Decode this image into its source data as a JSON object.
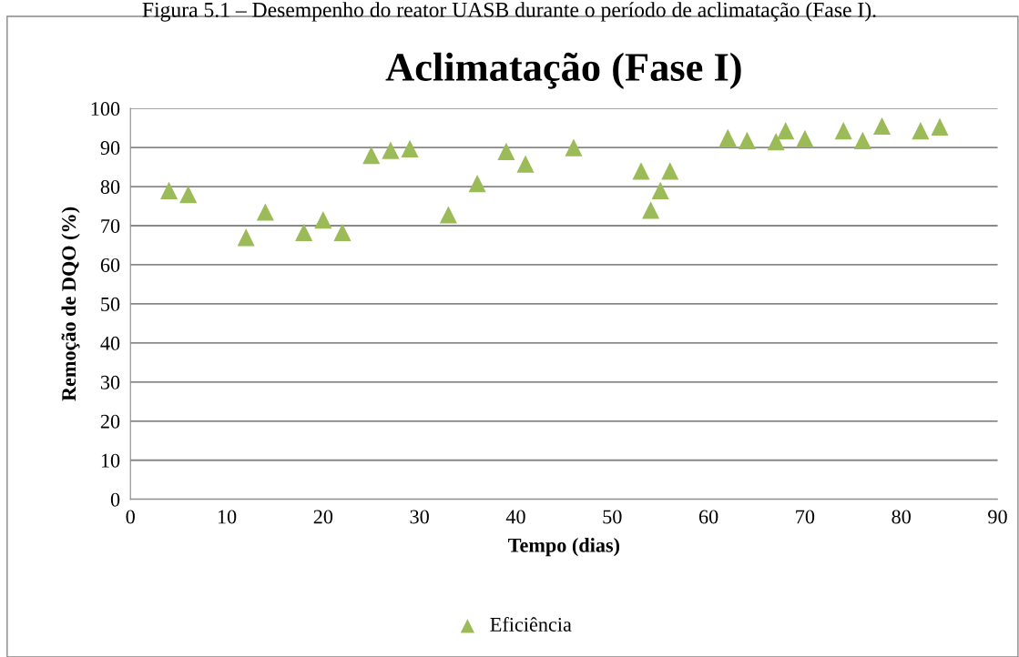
{
  "chart_data": {
    "type": "scatter",
    "title": "Aclimatação (Fase I)",
    "xlabel": "Tempo (dias)",
    "ylabel": "Remoção de DQO (%)",
    "annotations": [
      "Figura 5.1 – Desempenho do reator UASB durante o período de aclimatação (Fase I)."
    ],
    "series": [
      {
        "name": "Eficiência",
        "color": "#9bbb59",
        "x": [
          4,
          6,
          12,
          14,
          18,
          20,
          22,
          25,
          27,
          29,
          33,
          36,
          39,
          41,
          46,
          53,
          54,
          55,
          56,
          62,
          64,
          67,
          68,
          70,
          74,
          76,
          78,
          82,
          84
        ],
        "values": [
          79,
          78,
          67,
          73.5,
          68.3,
          71.5,
          68.3,
          88,
          89.3,
          89.7,
          72.8,
          80.8,
          89,
          85.8,
          90,
          84,
          74,
          79,
          84,
          92.5,
          91.8,
          91.5,
          94.3,
          92.3,
          94.3,
          91.8,
          95.5,
          94.3,
          95.3
        ]
      }
    ],
    "xlim": [
      0,
      90
    ],
    "xticks": [
      0,
      10,
      20,
      30,
      40,
      50,
      60,
      70,
      80,
      90
    ],
    "ylim": [
      0,
      100
    ],
    "yticks": [
      0,
      10,
      20,
      30,
      40,
      50,
      60,
      70,
      80,
      90,
      100
    ],
    "grid": "y",
    "legend": "bottom",
    "marker": "triangle"
  }
}
